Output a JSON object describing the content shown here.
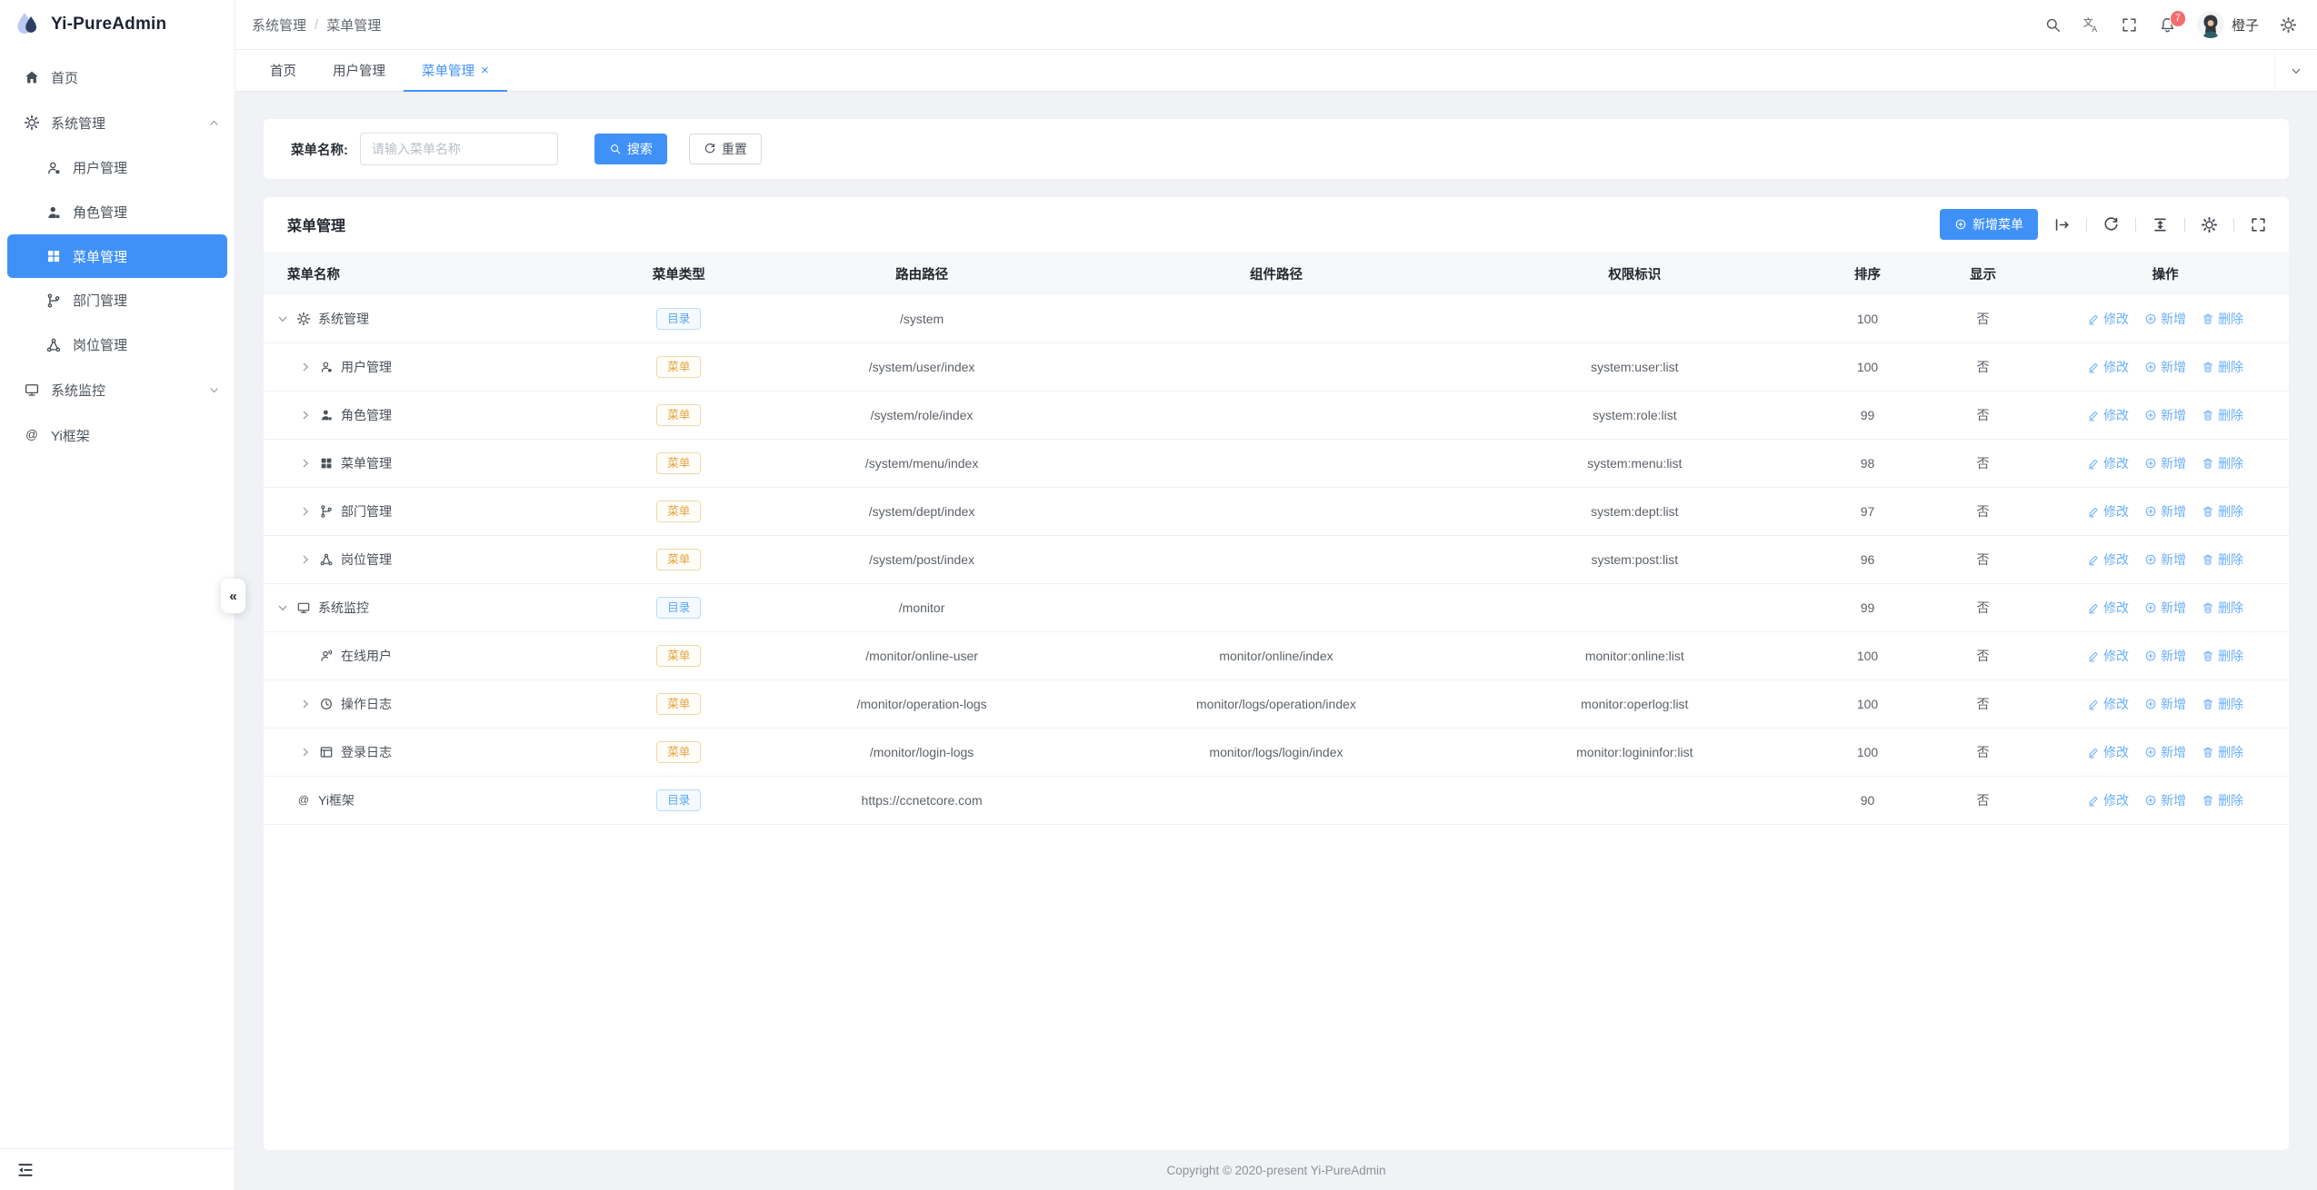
{
  "app": {
    "title": "Yi-PureAdmin",
    "copyright": "Copyright © 2020-present Yi-PureAdmin"
  },
  "glyphs": {
    "breadcrumb_separator": "/",
    "tab_close": "×",
    "collapse": "«"
  },
  "colors": {
    "primary": "#4091f7",
    "link_blue": "#69aefb",
    "badge_red": "#f56c6c",
    "dir_badge": "#57a7f7",
    "menu_badge": "#e7a23c"
  },
  "header": {
    "breadcrumb": [
      "系统管理",
      "菜单管理"
    ],
    "bell_count": "7",
    "username": "橙子"
  },
  "tabs": {
    "items": [
      {
        "label": "首页",
        "active": false
      },
      {
        "label": "用户管理",
        "active": false
      },
      {
        "label": "菜单管理",
        "active": true
      }
    ]
  },
  "sidebar": {
    "items": [
      {
        "label": "首页",
        "icon": "home"
      },
      {
        "label": "系统管理",
        "icon": "gear",
        "expanded": true,
        "children": [
          {
            "label": "用户管理",
            "icon": "user"
          },
          {
            "label": "角色管理",
            "icon": "role"
          },
          {
            "label": "菜单管理",
            "icon": "grid",
            "active": true
          },
          {
            "label": "部门管理",
            "icon": "branch"
          },
          {
            "label": "岗位管理",
            "icon": "share"
          }
        ]
      },
      {
        "label": "系统监控",
        "icon": "monitor",
        "expanded": false
      },
      {
        "label": "Yi框架",
        "icon": "at"
      }
    ]
  },
  "search": {
    "label": "菜单名称:",
    "placeholder": "请输入菜单名称",
    "search_label": "搜索",
    "reset_label": "重置"
  },
  "card": {
    "title": "菜单管理",
    "add_label": "新增菜单"
  },
  "menu_table": {
    "columns": [
      "菜单名称",
      "菜单类型",
      "路由路径",
      "组件路径",
      "权限标识",
      "排序",
      "显示",
      "操作"
    ],
    "badges": {
      "dir": "目录",
      "menu": "菜单"
    },
    "ops": {
      "edit": "修改",
      "add": "新增",
      "delete": "删除"
    },
    "rows": [
      {
        "level": 0,
        "chevron": "expanded",
        "icon": "gear",
        "name": "系统管理",
        "type": "dir",
        "route": "/system",
        "component": "",
        "permission": "",
        "sort": "100",
        "show": "否"
      },
      {
        "level": 1,
        "chevron": "collapsed",
        "icon": "user",
        "name": "用户管理",
        "type": "menu",
        "route": "/system/user/index",
        "component": "",
        "permission": "system:user:list",
        "sort": "100",
        "show": "否"
      },
      {
        "level": 1,
        "chevron": "collapsed",
        "icon": "role",
        "name": "角色管理",
        "type": "menu",
        "route": "/system/role/index",
        "component": "",
        "permission": "system:role:list",
        "sort": "99",
        "show": "否"
      },
      {
        "level": 1,
        "chevron": "collapsed",
        "icon": "grid",
        "name": "菜单管理",
        "type": "menu",
        "route": "/system/menu/index",
        "component": "",
        "permission": "system:menu:list",
        "sort": "98",
        "show": "否"
      },
      {
        "level": 1,
        "chevron": "collapsed",
        "icon": "branch",
        "name": "部门管理",
        "type": "menu",
        "route": "/system/dept/index",
        "component": "",
        "permission": "system:dept:list",
        "sort": "97",
        "show": "否"
      },
      {
        "level": 1,
        "chevron": "collapsed",
        "icon": "share",
        "name": "岗位管理",
        "type": "menu",
        "route": "/system/post/index",
        "component": "",
        "permission": "system:post:list",
        "sort": "96",
        "show": "否"
      },
      {
        "level": 0,
        "chevron": "expanded",
        "icon": "monitor",
        "name": "系统监控",
        "type": "dir",
        "route": "/monitor",
        "component": "",
        "permission": "",
        "sort": "99",
        "show": "否"
      },
      {
        "level": 1,
        "chevron": "none",
        "icon": "online",
        "name": "在线用户",
        "type": "menu",
        "route": "/monitor/online-user",
        "component": "monitor/online/index",
        "permission": "monitor:online:list",
        "sort": "100",
        "show": "否"
      },
      {
        "level": 1,
        "chevron": "collapsed",
        "icon": "history",
        "name": "操作日志",
        "type": "menu",
        "route": "/monitor/operation-logs",
        "component": "monitor/logs/operation/index",
        "permission": "monitor:operlog:list",
        "sort": "100",
        "show": "否"
      },
      {
        "level": 1,
        "chevron": "collapsed",
        "icon": "loginlog",
        "name": "登录日志",
        "type": "menu",
        "route": "/monitor/login-logs",
        "component": "monitor/logs/login/index",
        "permission": "monitor:logininfor:list",
        "sort": "100",
        "show": "否"
      },
      {
        "level": 0,
        "chevron": "none",
        "icon": "at",
        "name": "Yi框架",
        "type": "dir",
        "route": "https://ccnetcore.com",
        "component": "",
        "permission": "",
        "sort": "90",
        "show": "否"
      }
    ]
  }
}
